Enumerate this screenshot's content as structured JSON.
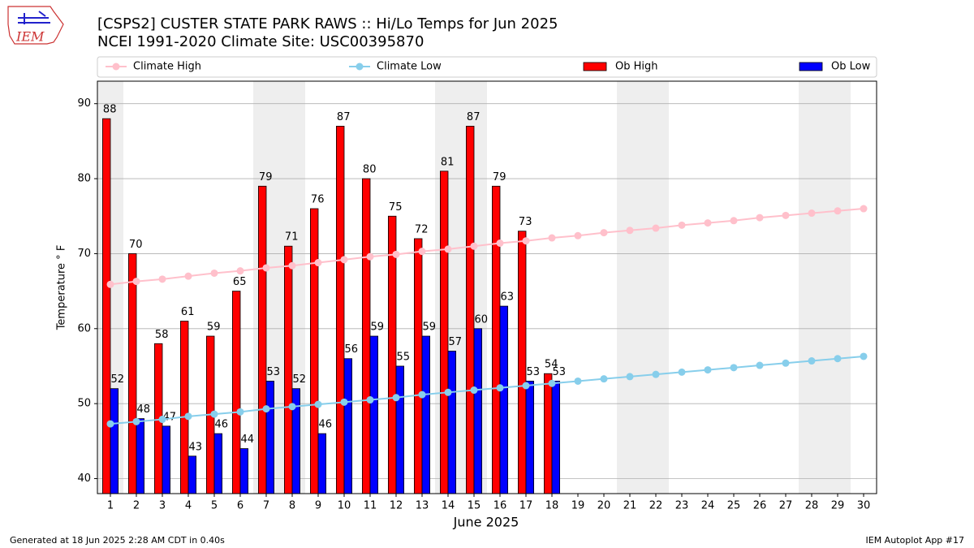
{
  "chart_data": {
    "type": "bar",
    "title": "[CSPS2] CUSTER STATE PARK RAWS :: Hi/Lo Temps for Jun 2025",
    "subtitle": "NCEI 1991-2020 Climate Site: USC00395870",
    "x_label": "June 2025",
    "y_label": "Temperature ° F",
    "footer_left": "Generated at 18 Jun 2025 2:28 AM CDT in 0.40s",
    "footer_right": "IEM Autoplot App #17",
    "logo_text": "IEM",
    "x": [
      1,
      2,
      3,
      4,
      5,
      6,
      7,
      8,
      9,
      10,
      11,
      12,
      13,
      14,
      15,
      16,
      17,
      18,
      19,
      20,
      21,
      22,
      23,
      24,
      25,
      26,
      27,
      28,
      29,
      30
    ],
    "xlim": [
      0.5,
      30.5
    ],
    "xticks": [
      1,
      2,
      3,
      4,
      5,
      6,
      7,
      8,
      9,
      10,
      11,
      12,
      13,
      14,
      15,
      16,
      17,
      18,
      19,
      20,
      21,
      22,
      23,
      24,
      25,
      26,
      27,
      28,
      29,
      30
    ],
    "ylim": [
      38,
      93
    ],
    "yticks": [
      40,
      50,
      60,
      70,
      80,
      90
    ],
    "grid": true,
    "weekend_days": [
      1,
      7,
      8,
      14,
      15,
      21,
      22,
      28,
      29
    ],
    "series": [
      {
        "name": "Climate High",
        "type": "line",
        "color": "#ffc0cb",
        "values": [
          65.9,
          66.3,
          66.6,
          67.0,
          67.4,
          67.7,
          68.1,
          68.4,
          68.8,
          69.2,
          69.6,
          69.9,
          70.3,
          70.6,
          71.0,
          71.4,
          71.7,
          72.1,
          72.4,
          72.8,
          73.1,
          73.4,
          73.8,
          74.1,
          74.4,
          74.8,
          75.1,
          75.4,
          75.7,
          76.0
        ]
      },
      {
        "name": "Climate Low",
        "type": "line",
        "color": "#87ceeb",
        "values": [
          47.3,
          47.6,
          47.9,
          48.3,
          48.6,
          48.9,
          49.3,
          49.6,
          49.9,
          50.2,
          50.5,
          50.8,
          51.2,
          51.5,
          51.8,
          52.1,
          52.4,
          52.7,
          53.0,
          53.3,
          53.6,
          53.9,
          54.2,
          54.5,
          54.8,
          55.1,
          55.4,
          55.7,
          56.0,
          56.3
        ]
      },
      {
        "name": "Ob High",
        "type": "bar",
        "color": "#ff0000",
        "values": [
          88,
          70,
          58,
          61,
          59,
          65,
          79,
          71,
          76,
          87,
          80,
          75,
          72,
          81,
          87,
          79,
          73,
          54,
          null,
          null,
          null,
          null,
          null,
          null,
          null,
          null,
          null,
          null,
          null,
          null
        ]
      },
      {
        "name": "Ob Low",
        "type": "bar",
        "color": "#0000ff",
        "values": [
          52,
          48,
          47,
          43,
          46,
          44,
          53,
          52,
          46,
          56,
          59,
          55,
          59,
          57,
          60,
          63,
          53,
          53,
          null,
          null,
          null,
          null,
          null,
          null,
          null,
          null,
          null,
          null,
          null,
          null
        ]
      }
    ]
  }
}
